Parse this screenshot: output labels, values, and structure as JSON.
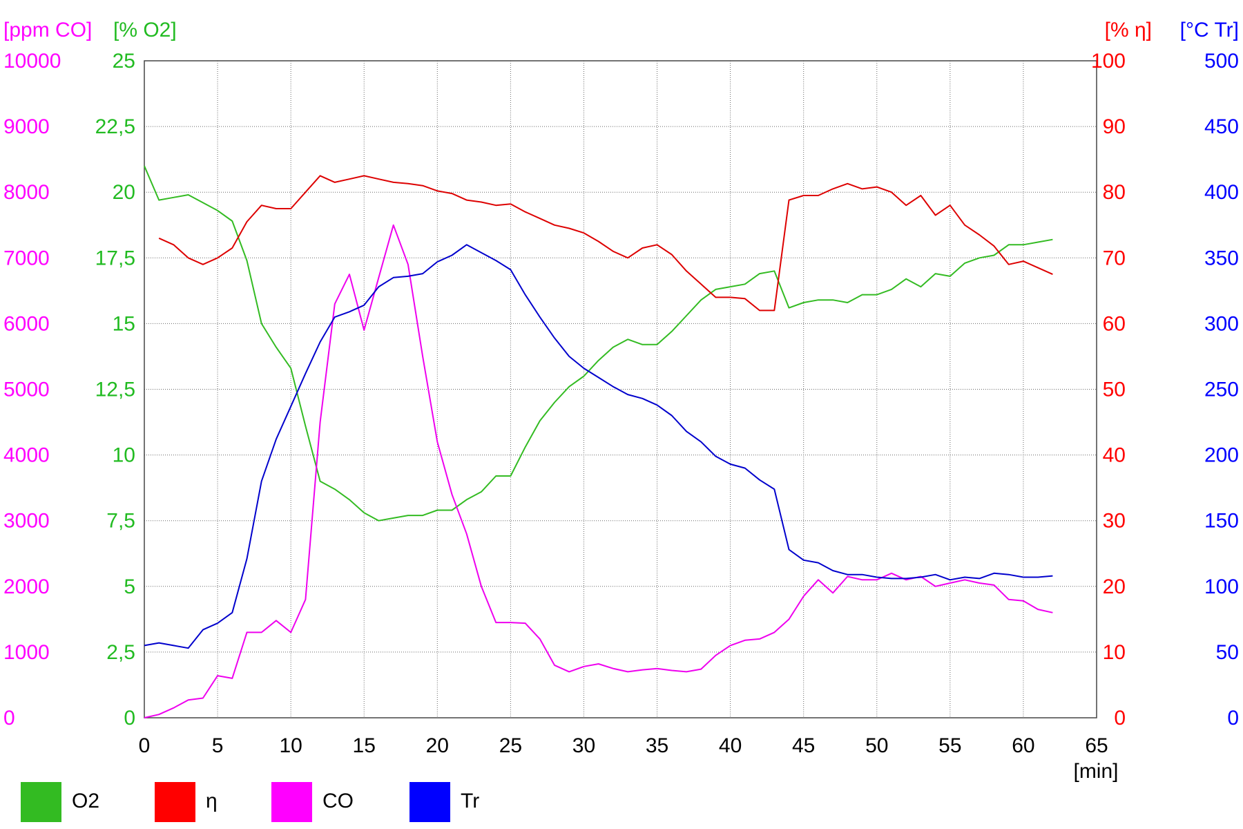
{
  "chart_data": {
    "type": "line",
    "xlabel": "[min]",
    "x_ticks": [
      "0",
      "5",
      "10",
      "15",
      "20",
      "25",
      "30",
      "35",
      "40",
      "45",
      "50",
      "55",
      "60",
      "65"
    ],
    "xlim": [
      0,
      65
    ],
    "grid": true,
    "legend_placement": "bottom-left",
    "axes": [
      {
        "id": "co",
        "label": "[ppm CO]",
        "color": "#ff00ff",
        "min": 0,
        "max": 10000,
        "ticks": [
          "0",
          "1000",
          "2000",
          "3000",
          "4000",
          "5000",
          "6000",
          "7000",
          "8000",
          "9000",
          "10000"
        ]
      },
      {
        "id": "o2",
        "label": "[% O2]",
        "color": "#22bb22",
        "min": 0,
        "max": 25,
        "ticks": [
          "0",
          "2,5",
          "5",
          "7,5",
          "10",
          "12,5",
          "15",
          "17,5",
          "20",
          "22,5",
          "25"
        ]
      },
      {
        "id": "eta",
        "label": "[% η]",
        "color": "#ff0000",
        "min": 0,
        "max": 100,
        "ticks": [
          "0",
          "10",
          "20",
          "30",
          "40",
          "50",
          "60",
          "70",
          "80",
          "90",
          "100"
        ]
      },
      {
        "id": "tr",
        "label": "[°C Tr]",
        "color": "#0000ff",
        "min": 0,
        "max": 500,
        "ticks": [
          "0",
          "50",
          "100",
          "150",
          "200",
          "250",
          "300",
          "350",
          "400",
          "450",
          "500"
        ]
      }
    ],
    "series": [
      {
        "name": "O2",
        "axis": "o2",
        "color": "#33bb22",
        "x": [
          0,
          1,
          2,
          3,
          4,
          5,
          6,
          7,
          8,
          9,
          10,
          11,
          12,
          13,
          14,
          15,
          16,
          17,
          18,
          19,
          20,
          21,
          22,
          23,
          24,
          25,
          26,
          27,
          28,
          29,
          30,
          31,
          32,
          33,
          34,
          35,
          36,
          37,
          38,
          39,
          40,
          41,
          42,
          43,
          44,
          45,
          46,
          47,
          48,
          49,
          50,
          51,
          52,
          53,
          54,
          55,
          56,
          57,
          58,
          59,
          60,
          61,
          62
        ],
        "values": [
          21.0,
          19.7,
          19.8,
          19.9,
          19.6,
          19.3,
          18.9,
          17.4,
          15.0,
          14.1,
          13.3,
          11.1,
          9.0,
          8.7,
          8.3,
          7.8,
          7.5,
          7.6,
          7.7,
          7.7,
          7.9,
          7.9,
          8.3,
          8.6,
          9.2,
          9.2,
          10.3,
          11.3,
          12.0,
          12.6,
          13.0,
          13.6,
          14.1,
          14.4,
          14.2,
          14.2,
          14.7,
          15.3,
          15.9,
          16.3,
          16.4,
          16.5,
          16.9,
          17.0,
          15.6,
          15.8,
          15.9,
          15.9,
          15.8,
          16.1,
          16.1,
          16.3,
          16.7,
          16.4,
          16.9,
          16.8,
          17.3,
          17.5,
          17.6,
          18.0,
          18.0,
          18.1,
          18.2
        ]
      },
      {
        "name": "η",
        "axis": "eta",
        "color": "#dd0000",
        "x": [
          1,
          2,
          3,
          4,
          5,
          6,
          7,
          8,
          9,
          10,
          11,
          12,
          13,
          14,
          15,
          16,
          17,
          18,
          19,
          20,
          21,
          22,
          23,
          24,
          25,
          26,
          27,
          28,
          29,
          30,
          31,
          32,
          33,
          34,
          35,
          36,
          37,
          38,
          39,
          40,
          41,
          42,
          43,
          44,
          45,
          46,
          47,
          48,
          49,
          50,
          51,
          52,
          53,
          54,
          55,
          56,
          57,
          58,
          59,
          60,
          61,
          62
        ],
        "values": [
          73,
          72,
          70,
          69,
          70,
          71.5,
          75.5,
          78,
          77.5,
          77.5,
          80,
          82.5,
          81.5,
          82,
          82.5,
          82,
          81.5,
          81.3,
          81,
          80.2,
          79.8,
          78.8,
          78.5,
          78,
          78.2,
          77,
          76,
          75,
          74.5,
          73.8,
          72.5,
          71,
          70,
          71.5,
          72,
          70.5,
          68,
          66,
          64,
          64,
          63.8,
          62,
          62,
          78.8,
          79.5,
          79.5,
          80.5,
          81.3,
          80.5,
          80.8,
          80,
          78,
          79.5,
          76.5,
          78,
          75,
          73.5,
          71.8,
          69,
          69.5,
          68.5,
          67.5
        ]
      },
      {
        "name": "CO",
        "axis": "co",
        "color": "#ee00ee",
        "x": [
          0,
          1,
          2,
          3,
          4,
          5,
          6,
          7,
          8,
          9,
          10,
          11,
          12,
          13,
          14,
          15,
          16,
          17,
          18,
          19,
          20,
          21,
          22,
          23,
          24,
          25,
          26,
          27,
          28,
          29,
          30,
          31,
          32,
          33,
          34,
          35,
          36,
          37,
          38,
          39,
          40,
          41,
          42,
          43,
          44,
          45,
          46,
          47,
          48,
          49,
          50,
          51,
          52,
          53,
          54,
          55,
          56,
          57,
          58,
          59,
          60,
          61,
          62
        ],
        "values": [
          0,
          50,
          150,
          270,
          300,
          640,
          600,
          1300,
          1300,
          1480,
          1300,
          1800,
          4500,
          6300,
          6750,
          5900,
          6700,
          7500,
          6900,
          5500,
          4200,
          3400,
          2800,
          2000,
          1450,
          1450,
          1440,
          1200,
          800,
          700,
          780,
          820,
          750,
          700,
          730,
          750,
          720,
          700,
          740,
          950,
          1100,
          1180,
          1200,
          1300,
          1500,
          1850,
          2100,
          1900,
          2150,
          2100,
          2100,
          2200,
          2100,
          2150,
          2000,
          2050,
          2100,
          2050,
          2020,
          1800,
          1780,
          1650,
          1600
        ]
      },
      {
        "name": "Tr",
        "axis": "tr",
        "color": "#0000cc",
        "x": [
          0,
          1,
          2,
          3,
          4,
          5,
          6,
          7,
          8,
          9,
          10,
          11,
          12,
          13,
          14,
          15,
          16,
          17,
          18,
          19,
          20,
          21,
          22,
          23,
          24,
          25,
          26,
          27,
          28,
          29,
          30,
          31,
          32,
          33,
          34,
          35,
          36,
          37,
          38,
          39,
          40,
          41,
          42,
          43,
          44,
          45,
          46,
          47,
          48,
          49,
          50,
          51,
          52,
          53,
          54,
          55,
          56,
          57,
          58,
          59,
          60,
          61,
          62
        ],
        "values": [
          55,
          57,
          55,
          53,
          67,
          72,
          80,
          121,
          180,
          212,
          237,
          262,
          286,
          305,
          309,
          314,
          328,
          335,
          336,
          338,
          347,
          352,
          360,
          354,
          348,
          341,
          322,
          305,
          289,
          275,
          266,
          259,
          252,
          246,
          243,
          238,
          230,
          218,
          210,
          199,
          193,
          190,
          181,
          174,
          128,
          120,
          118,
          112,
          109,
          109,
          107,
          106,
          106,
          107,
          109,
          105,
          107,
          106,
          110,
          109,
          107,
          107,
          108
        ]
      }
    ],
    "legend": [
      {
        "name": "O2",
        "color": "#33bb22"
      },
      {
        "name": "η",
        "color": "#ff0000"
      },
      {
        "name": "CO",
        "color": "#ff00ff"
      },
      {
        "name": "Tr",
        "color": "#0000ff"
      }
    ]
  }
}
